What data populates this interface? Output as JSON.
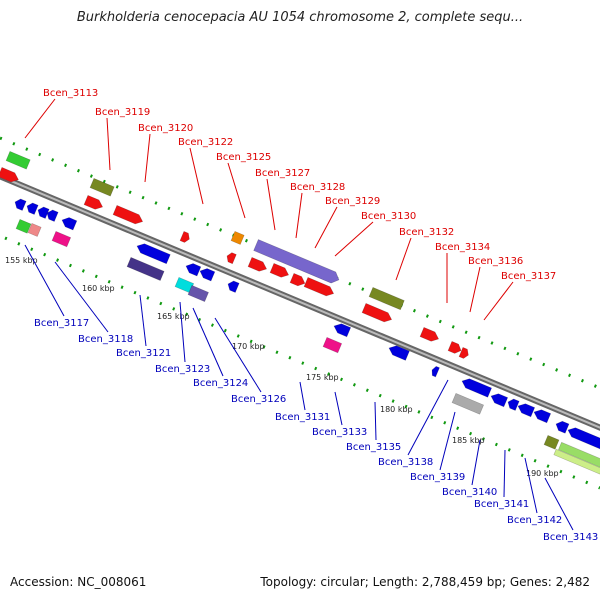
{
  "title": "Burkholderia cenocepacia AU 1054 chromosome 2, complete sequ...",
  "footer": {
    "accession": "Accession: NC_008061",
    "topology": "Topology: circular; Length: 2,788,459 bp; Genes: 2,482"
  },
  "colors": {
    "above_label": "#dd0000",
    "below_label": "#0000bb",
    "axis": "#888888",
    "tick": "#119911"
  },
  "scale_labels": [
    "155 kbp",
    "160 kbp",
    "165 kbp",
    "170 kbp",
    "175 kbp",
    "180 kbp",
    "185 kbp",
    "190 kbp"
  ],
  "genes_above": [
    "Bcen_3113",
    "Bcen_3119",
    "Bcen_3120",
    "Bcen_3122",
    "Bcen_3125",
    "Bcen_3127",
    "Bcen_3128",
    "Bcen_3129",
    "Bcen_3130",
    "Bcen_3132",
    "Bcen_3134",
    "Bcen_3136",
    "Bcen_3137"
  ],
  "genes_below": [
    "Bcen_3117",
    "Bcen_3118",
    "Bcen_3121",
    "Bcen_3123",
    "Bcen_3124",
    "Bcen_3126",
    "Bcen_3131",
    "Bcen_3133",
    "Bcen_3135",
    "Bcen_3138",
    "Bcen_3139",
    "Bcen_3140",
    "Bcen_3141",
    "Bcen_3142",
    "Bcen_3143"
  ]
}
